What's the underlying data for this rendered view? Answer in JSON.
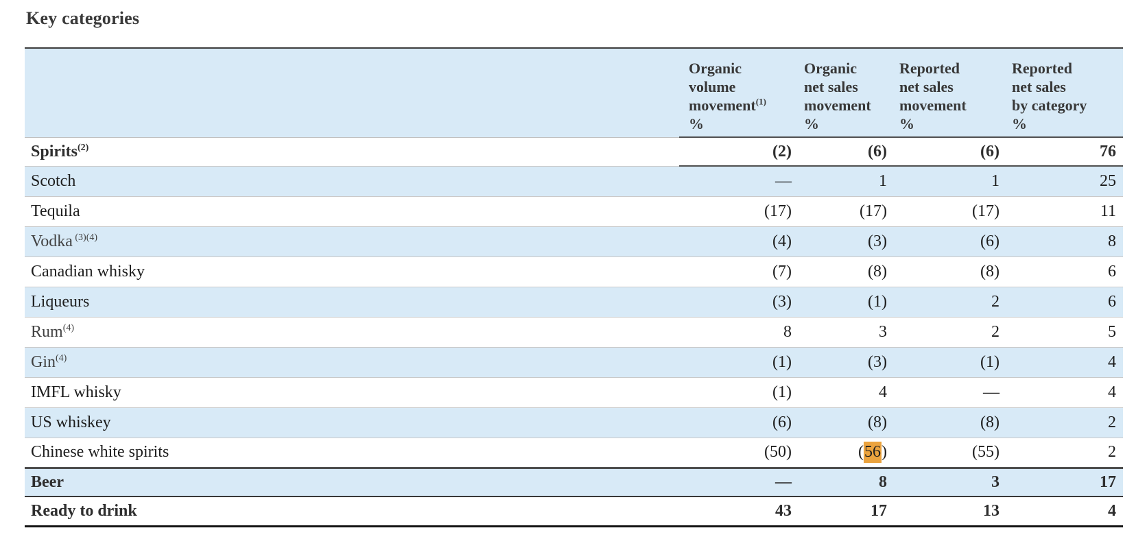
{
  "page": {
    "title": "Key categories"
  },
  "colors": {
    "row_blue": "#d8eaf7",
    "highlight_orange": "#eba33e",
    "rule_dark": "#4f4f4f",
    "rule_light": "#c9c9c9",
    "rule_black": "#141414"
  },
  "table": {
    "columns": [
      {
        "lines": [
          "Organic",
          "volume",
          "movement"
        ],
        "sup": "(1)",
        "unit": "%"
      },
      {
        "lines": [
          "Organic",
          "net sales",
          "movement"
        ],
        "sup": "",
        "unit": "%"
      },
      {
        "lines": [
          "Reported",
          "net sales",
          "movement"
        ],
        "sup": "",
        "unit": "%"
      },
      {
        "lines": [
          "Reported",
          "net sales",
          "by category"
        ],
        "sup": "",
        "unit": "%"
      }
    ],
    "rows": [
      {
        "label": "Spirits",
        "sup": "(2)",
        "bold": true,
        "shaded": false,
        "muted": false,
        "rule": "values-dark",
        "values": [
          "(2)",
          "(6)",
          "(6)",
          "76"
        ]
      },
      {
        "label": "Scotch",
        "sup": "",
        "bold": false,
        "shaded": true,
        "muted": false,
        "rule": "light",
        "values": [
          "—",
          "1",
          "1",
          "25"
        ]
      },
      {
        "label": "Tequila",
        "sup": "",
        "bold": false,
        "shaded": false,
        "muted": false,
        "rule": "light",
        "values": [
          "(17)",
          "(17)",
          "(17)",
          "11"
        ]
      },
      {
        "label": "Vodka",
        "sup": " (3)(4)",
        "bold": false,
        "shaded": true,
        "muted": true,
        "rule": "light",
        "values": [
          "(4)",
          "(3)",
          "(6)",
          "8"
        ]
      },
      {
        "label": "Canadian whisky",
        "sup": "",
        "bold": false,
        "shaded": false,
        "muted": false,
        "rule": "light",
        "values": [
          "(7)",
          "(8)",
          "(8)",
          "6"
        ]
      },
      {
        "label": "Liqueurs",
        "sup": "",
        "bold": false,
        "shaded": true,
        "muted": false,
        "rule": "light",
        "values": [
          "(3)",
          "(1)",
          "2",
          "6"
        ]
      },
      {
        "label": "Rum",
        "sup": "(4)",
        "bold": false,
        "shaded": false,
        "muted": true,
        "rule": "light",
        "values": [
          "8",
          "3",
          "2",
          "5"
        ]
      },
      {
        "label": "Gin",
        "sup": "(4)",
        "bold": false,
        "shaded": true,
        "muted": true,
        "rule": "light",
        "values": [
          "(1)",
          "(3)",
          "(1)",
          "4"
        ]
      },
      {
        "label": "IMFL whisky",
        "sup": "",
        "bold": false,
        "shaded": false,
        "muted": false,
        "rule": "light",
        "values": [
          "(1)",
          "4",
          "—",
          "4"
        ]
      },
      {
        "label": "US whiskey",
        "sup": "",
        "bold": false,
        "shaded": true,
        "muted": false,
        "rule": "light",
        "values": [
          "(6)",
          "(8)",
          "(8)",
          "2"
        ]
      },
      {
        "label": "Chinese white spirits",
        "sup": "",
        "bold": false,
        "shaded": false,
        "muted": false,
        "rule": "full-dark",
        "values": [
          "(50)",
          {
            "text": "(56)",
            "highlight": "56"
          },
          "(55)",
          "2"
        ]
      },
      {
        "label": "Beer",
        "sup": "",
        "bold": true,
        "shaded": true,
        "muted": false,
        "rule": "full-medium",
        "values": [
          "—",
          "8",
          "3",
          "17"
        ]
      },
      {
        "label": "Ready to drink",
        "sup": "",
        "bold": true,
        "shaded": false,
        "muted": false,
        "rule": "full-black",
        "values": [
          "43",
          "17",
          "13",
          "4"
        ]
      }
    ]
  }
}
